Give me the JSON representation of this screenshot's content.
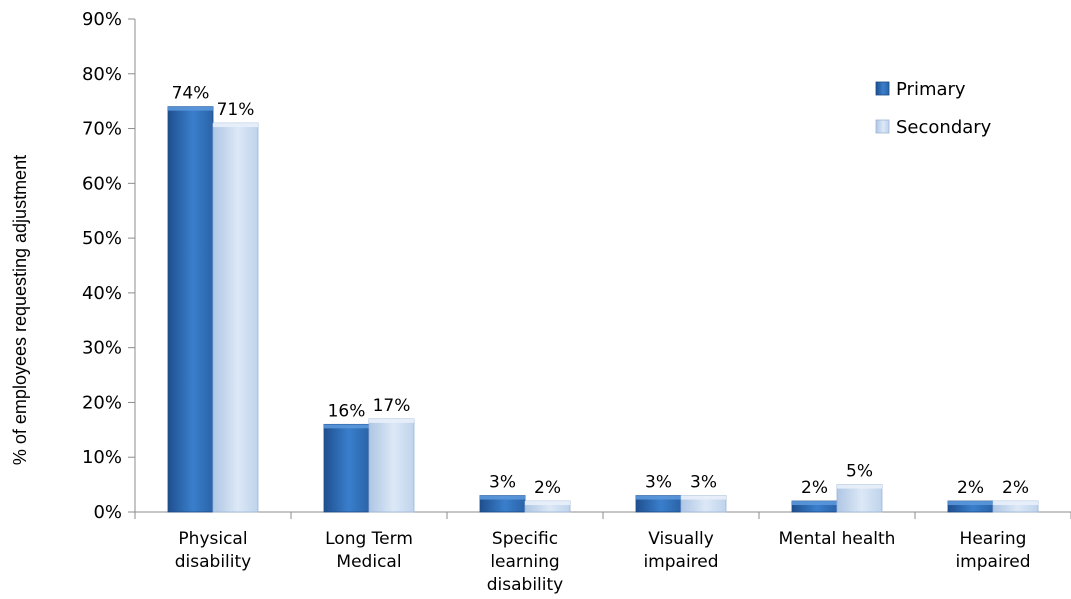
{
  "chart_data": {
    "type": "bar",
    "categories": [
      [
        "Physical",
        "disability"
      ],
      [
        "Long Term",
        "Medical"
      ],
      [
        "Specific",
        "learning",
        "disability"
      ],
      [
        "Visually",
        "impaired"
      ],
      [
        "Mental health"
      ],
      [
        "Hearing",
        "impaired"
      ]
    ],
    "series": [
      {
        "name": "Primary",
        "values": [
          74,
          16,
          3,
          3,
          2,
          2
        ],
        "labels": [
          "74%",
          "16%",
          "3%",
          "3%",
          "2%",
          "2%"
        ],
        "color": "#2E6DB9"
      },
      {
        "name": "Secondary",
        "values": [
          71,
          17,
          2,
          3,
          5,
          2
        ],
        "labels": [
          "71%",
          "17%",
          "2%",
          "3%",
          "5%",
          "2%"
        ],
        "color": "#C6D9F0"
      }
    ],
    "ylabel": "% of employees requesting adjustment",
    "ylim": [
      0,
      90
    ],
    "yticks": [
      0,
      10,
      20,
      30,
      40,
      50,
      60,
      70,
      80,
      90
    ],
    "ytick_labels": [
      "0%",
      "10%",
      "20%",
      "30%",
      "40%",
      "50%",
      "60%",
      "70%",
      "80%",
      "90%"
    ],
    "grid": false,
    "legend_position": "top-right"
  }
}
